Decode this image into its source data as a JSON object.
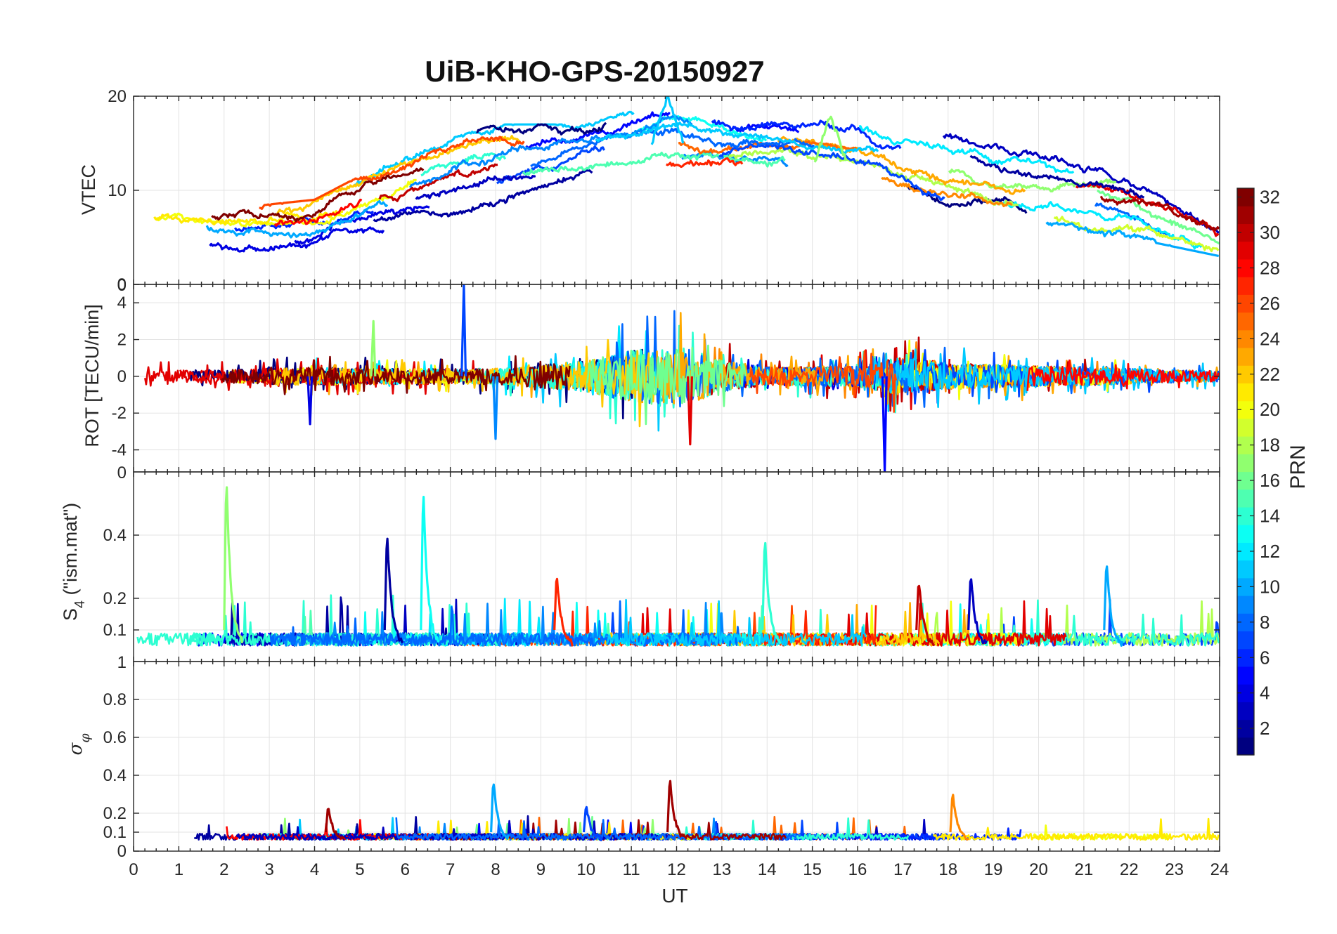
{
  "chart_data": {
    "type": "line",
    "title": "UiB-KHO-GPS-20150927",
    "xlabel": "UT",
    "xlim": [
      0,
      24
    ],
    "x_ticks": [
      "0",
      "1",
      "2",
      "3",
      "4",
      "5",
      "6",
      "7",
      "8",
      "9",
      "10",
      "11",
      "12",
      "13",
      "14",
      "15",
      "16",
      "17",
      "18",
      "19",
      "20",
      "21",
      "22",
      "23",
      "24"
    ],
    "series_count": 32,
    "colormap": "jet",
    "colorbar": {
      "label": "PRN",
      "range": [
        1,
        32
      ],
      "ticks": [
        "2",
        "4",
        "6",
        "8",
        "10",
        "12",
        "14",
        "16",
        "18",
        "20",
        "22",
        "24",
        "26",
        "28",
        "30",
        "32"
      ]
    },
    "panels": [
      {
        "id": "vtec",
        "ylabel": "VTEC",
        "ylim": [
          0,
          20
        ],
        "y_ticks": [
          {
            "value": 0,
            "label": "0"
          },
          {
            "value": 10,
            "label": "10"
          },
          {
            "value": 20,
            "label": "20"
          }
        ],
        "envelope": {
          "x": [
            0,
            2,
            4,
            6,
            8,
            10,
            12,
            14,
            16,
            18,
            20,
            22,
            24
          ],
          "min": [
            4,
            4,
            4,
            6,
            8,
            12,
            12,
            12,
            10,
            7,
            6,
            6,
            4
          ],
          "max": [
            8,
            8,
            9,
            14,
            17,
            17,
            20,
            18,
            18,
            16,
            14,
            12,
            7
          ]
        },
        "peak_annotations": [
          {
            "prn": 11,
            "x": 11.8,
            "y": 20.0
          },
          {
            "prn": 17,
            "x": 15.4,
            "y": 18.0
          }
        ]
      },
      {
        "id": "rot",
        "ylabel": "ROT [TECU/min]",
        "ylim": [
          -5.2,
          5
        ],
        "y_ticks": [
          {
            "value": -4,
            "label": "-4"
          },
          {
            "value": -2,
            "label": "-2"
          },
          {
            "value": 0,
            "label": "0"
          },
          {
            "value": 2,
            "label": "2"
          },
          {
            "value": 4,
            "label": "4"
          }
        ],
        "corner_label": "0",
        "noise_profile": {
          "x": [
            0,
            2,
            4,
            6,
            8,
            10,
            11,
            12,
            13,
            14,
            16,
            17,
            18,
            20,
            22,
            24
          ],
          "amplitude": [
            0.5,
            0.5,
            0.7,
            0.6,
            0.6,
            1.2,
            2.0,
            2.5,
            1.2,
            0.7,
            0.8,
            1.5,
            1.0,
            0.8,
            0.6,
            0.4
          ]
        },
        "spikes": [
          {
            "prn": 7,
            "x": 7.3,
            "y": 5.0
          },
          {
            "prn": 5,
            "x": 16.6,
            "y": -5.2
          },
          {
            "prn": 29,
            "x": 12.3,
            "y": -3.7
          },
          {
            "prn": 4,
            "x": 3.9,
            "y": -2.6
          },
          {
            "prn": 9,
            "x": 8.0,
            "y": -3.4
          },
          {
            "prn": 17,
            "x": 5.3,
            "y": 3.0
          }
        ]
      },
      {
        "id": "s4",
        "ylabel": "S4 (\"ism.mat\")",
        "ylim": [
          0,
          0.6
        ],
        "y_ticks": [
          {
            "value": 0.1,
            "label": "0.1"
          },
          {
            "value": 0.2,
            "label": "0.2"
          },
          {
            "value": 0.4,
            "label": "0.4"
          }
        ],
        "corner_label": "0",
        "baseline": [
          0.05,
          0.1
        ],
        "spikes": [
          {
            "prn": 17,
            "x": 2.05,
            "y": 0.6
          },
          {
            "prn": 2,
            "x": 5.6,
            "y": 0.42
          },
          {
            "prn": 13,
            "x": 6.4,
            "y": 0.56
          },
          {
            "prn": 14,
            "x": 13.95,
            "y": 0.41
          },
          {
            "prn": 30,
            "x": 17.35,
            "y": 0.27
          },
          {
            "prn": 3,
            "x": 18.5,
            "y": 0.29
          },
          {
            "prn": 10,
            "x": 21.5,
            "y": 0.33
          },
          {
            "prn": 27,
            "x": 9.35,
            "y": 0.29
          }
        ]
      },
      {
        "id": "sigma_phi",
        "ylabel": "σφ",
        "ylim": [
          0,
          1
        ],
        "y_ticks": [
          {
            "value": 0,
            "label": "0"
          },
          {
            "value": 0.1,
            "label": "0.1"
          },
          {
            "value": 0.2,
            "label": "0.2"
          },
          {
            "value": 0.4,
            "label": "0.4"
          },
          {
            "value": 0.6,
            "label": "0.6"
          },
          {
            "value": 0.8,
            "label": "0.8"
          }
        ],
        "corner_label": "1",
        "baseline": [
          0.06,
          0.1
        ],
        "spikes": [
          {
            "prn": 10,
            "x": 7.95,
            "y": 0.39
          },
          {
            "prn": 31,
            "x": 11.85,
            "y": 0.4
          },
          {
            "prn": 24,
            "x": 18.1,
            "y": 0.32
          },
          {
            "prn": 31,
            "x": 4.3,
            "y": 0.25
          },
          {
            "prn": 7,
            "x": 10.0,
            "y": 0.25
          }
        ]
      }
    ]
  }
}
